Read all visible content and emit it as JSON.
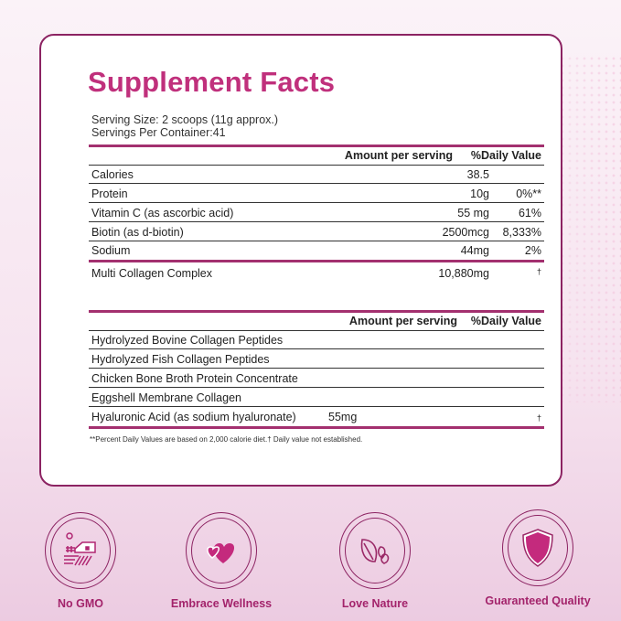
{
  "title": "Supplement Facts",
  "serving_size": "Serving Size: 2 scoops (11g approx.)",
  "servings_per_container": "Servings Per Container:41",
  "table1": {
    "amount_header": "Amount per serving",
    "dv_header": "%Daily Value",
    "rows": [
      {
        "name": "Calories",
        "amount": "38.5",
        "dv": ""
      },
      {
        "name": "Protein",
        "amount": "10g",
        "dv": "0%**"
      },
      {
        "name": "Vitamin C (as ascorbic acid)",
        "amount": "55 mg",
        "dv": "61%"
      },
      {
        "name": "Biotin (as d-biotin)",
        "amount": "2500mcg",
        "dv": "8,333%"
      },
      {
        "name": "Sodium",
        "amount": "44mg",
        "dv": "2%"
      }
    ],
    "complex": {
      "name": "Multi Collagen Complex",
      "amount": "10,880mg",
      "dv": "†"
    }
  },
  "table2": {
    "amount_header": "Amount per serving",
    "dv_header": "%Daily Value",
    "rows": [
      {
        "name": "Hydrolyzed Bovine Collagen Peptides",
        "amount": "",
        "dv": ""
      },
      {
        "name": "Hydrolyzed Fish Collagen Peptides",
        "amount": "",
        "dv": ""
      },
      {
        "name": "Chicken Bone Broth Protein Concentrate",
        "amount": "",
        "dv": ""
      },
      {
        "name": "Eggshell Membrane Collagen",
        "amount": "",
        "dv": ""
      },
      {
        "name": "Hyaluronic Acid (as sodium hyaluronate)",
        "amount": "55mg",
        "dv": "†"
      }
    ]
  },
  "footnote": "**Percent Daily Values are based on 2,000 calorie diet.† Daily value not established.",
  "badges": [
    {
      "label": "No GMO",
      "icon": "farm-icon"
    },
    {
      "label": "Embrace Wellness",
      "icon": "hearts-icon"
    },
    {
      "label": "Love Nature",
      "icon": "leaves-icon"
    },
    {
      "label": "Guaranteed Quality",
      "icon": "shield-icon"
    }
  ],
  "colors": {
    "accent": "#c0307c",
    "border": "#8c2362"
  }
}
